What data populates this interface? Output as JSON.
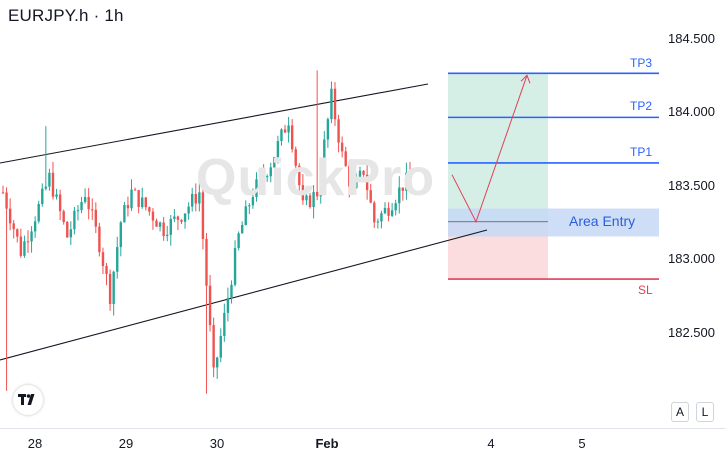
{
  "header": {
    "title": "EURJPY.h · 1h"
  },
  "watermark": "QuickPro",
  "y_axis": {
    "ticks": [
      "184.500",
      "184.000",
      "183.500",
      "183.000",
      "182.500"
    ]
  },
  "x_axis": {
    "ticks": [
      "28",
      "29",
      "30",
      "Feb",
      "4",
      "5"
    ]
  },
  "levels": {
    "tp3": "TP3",
    "tp2": "TP2",
    "tp1": "TP1",
    "sl": "SL",
    "entry": "Area Entry"
  },
  "buttons": {
    "auto": "A",
    "log": "L"
  },
  "colors": {
    "up": "#26a69a",
    "down": "#ef5350",
    "tp": "#2962ff",
    "sl": "#e04058",
    "profit_zone": "#d6efe6",
    "loss_zone": "#fbdde0",
    "entry_zone": "#c5d8f5"
  },
  "chart_data": {
    "type": "candlestick",
    "symbol": "EURJPY.h",
    "timeframe": "1h",
    "ylim": [
      182.05,
      184.62
    ],
    "x_categories": [
      "28",
      "29",
      "30",
      "Feb",
      "4",
      "5"
    ],
    "levels": [
      {
        "name": "TP3",
        "price": 184.26
      },
      {
        "name": "TP2",
        "price": 183.96
      },
      {
        "name": "TP1",
        "price": 183.65
      },
      {
        "name": "SL",
        "price": 182.86
      }
    ],
    "entry_zone": [
      183.15,
      183.34
    ],
    "entry_price": 183.25,
    "trendlines": [
      {
        "name": "upper",
        "from": [
          0,
          183.6
        ],
        "to": [
          108,
          184.18
        ]
      },
      {
        "name": "lower",
        "from": [
          0,
          182.35
        ],
        "to": [
          121,
          183.2
        ]
      }
    ],
    "projection": [
      [
        114,
        183.57
      ],
      [
        121,
        183.25
      ],
      [
        133,
        184.26
      ]
    ],
    "candles": []
  }
}
